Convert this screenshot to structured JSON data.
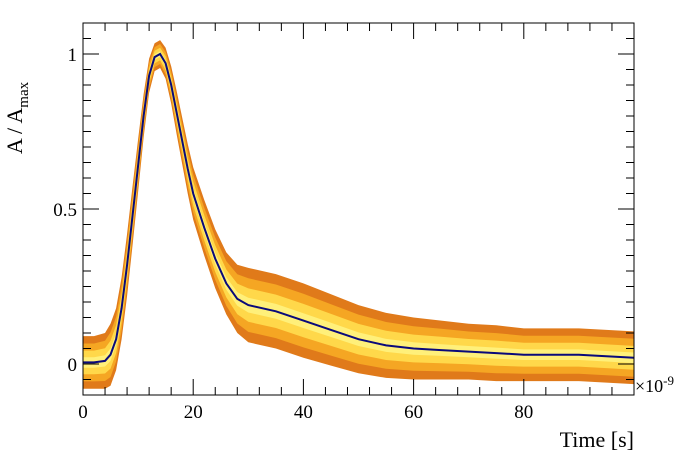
{
  "chart_data": {
    "type": "area",
    "title": "",
    "xlabel": "Time [s]",
    "ylabel_main": "A / A",
    "ylabel_sub": "max",
    "x_exponent": "×10",
    "x_exponent_power": "-9",
    "xlim": [
      0,
      100
    ],
    "ylim": [
      -0.1,
      1.1
    ],
    "x_ticks": [
      0,
      20,
      40,
      60,
      80
    ],
    "x_tick_labels": [
      "0",
      "20",
      "40",
      "60",
      "80"
    ],
    "y_ticks": [
      0,
      0.5,
      1
    ],
    "y_tick_labels": [
      "0",
      "0.5",
      "1"
    ],
    "colors": {
      "outer_band": "#e07a1a",
      "middle_band": "#f5a623",
      "inner_band": "#ffd84a",
      "core_band": "#fff07a",
      "mean": "#0a0a7a"
    },
    "series": [
      {
        "name": "mean",
        "x": [
          0,
          2,
          4,
          5,
          6,
          7,
          8,
          9,
          10,
          11,
          12,
          13,
          14,
          15,
          16,
          17,
          18,
          19,
          20,
          22,
          24,
          26,
          28,
          30,
          35,
          40,
          45,
          50,
          55,
          60,
          65,
          70,
          75,
          80,
          85,
          90,
          95,
          100
        ],
        "values": [
          0.005,
          0.005,
          0.01,
          0.03,
          0.08,
          0.18,
          0.32,
          0.48,
          0.64,
          0.8,
          0.93,
          0.99,
          1.0,
          0.97,
          0.9,
          0.81,
          0.72,
          0.63,
          0.55,
          0.44,
          0.34,
          0.26,
          0.21,
          0.19,
          0.17,
          0.14,
          0.11,
          0.08,
          0.06,
          0.05,
          0.045,
          0.04,
          0.035,
          0.03,
          0.03,
          0.03,
          0.025,
          0.02
        ]
      },
      {
        "name": "spread",
        "x": [
          0,
          2,
          4,
          5,
          6,
          7,
          8,
          9,
          10,
          11,
          12,
          13,
          14,
          15,
          16,
          17,
          18,
          19,
          20,
          22,
          24,
          26,
          28,
          30,
          35,
          40,
          45,
          50,
          55,
          60,
          65,
          70,
          75,
          80,
          85,
          90,
          95,
          100
        ],
        "values": [
          0.085,
          0.085,
          0.09,
          0.1,
          0.1,
          0.1,
          0.1,
          0.095,
          0.085,
          0.07,
          0.055,
          0.045,
          0.045,
          0.05,
          0.06,
          0.07,
          0.075,
          0.08,
          0.085,
          0.09,
          0.095,
          0.1,
          0.11,
          0.12,
          0.12,
          0.12,
          0.115,
          0.11,
          0.105,
          0.1,
          0.095,
          0.09,
          0.09,
          0.085,
          0.085,
          0.085,
          0.085,
          0.085
        ]
      }
    ]
  }
}
